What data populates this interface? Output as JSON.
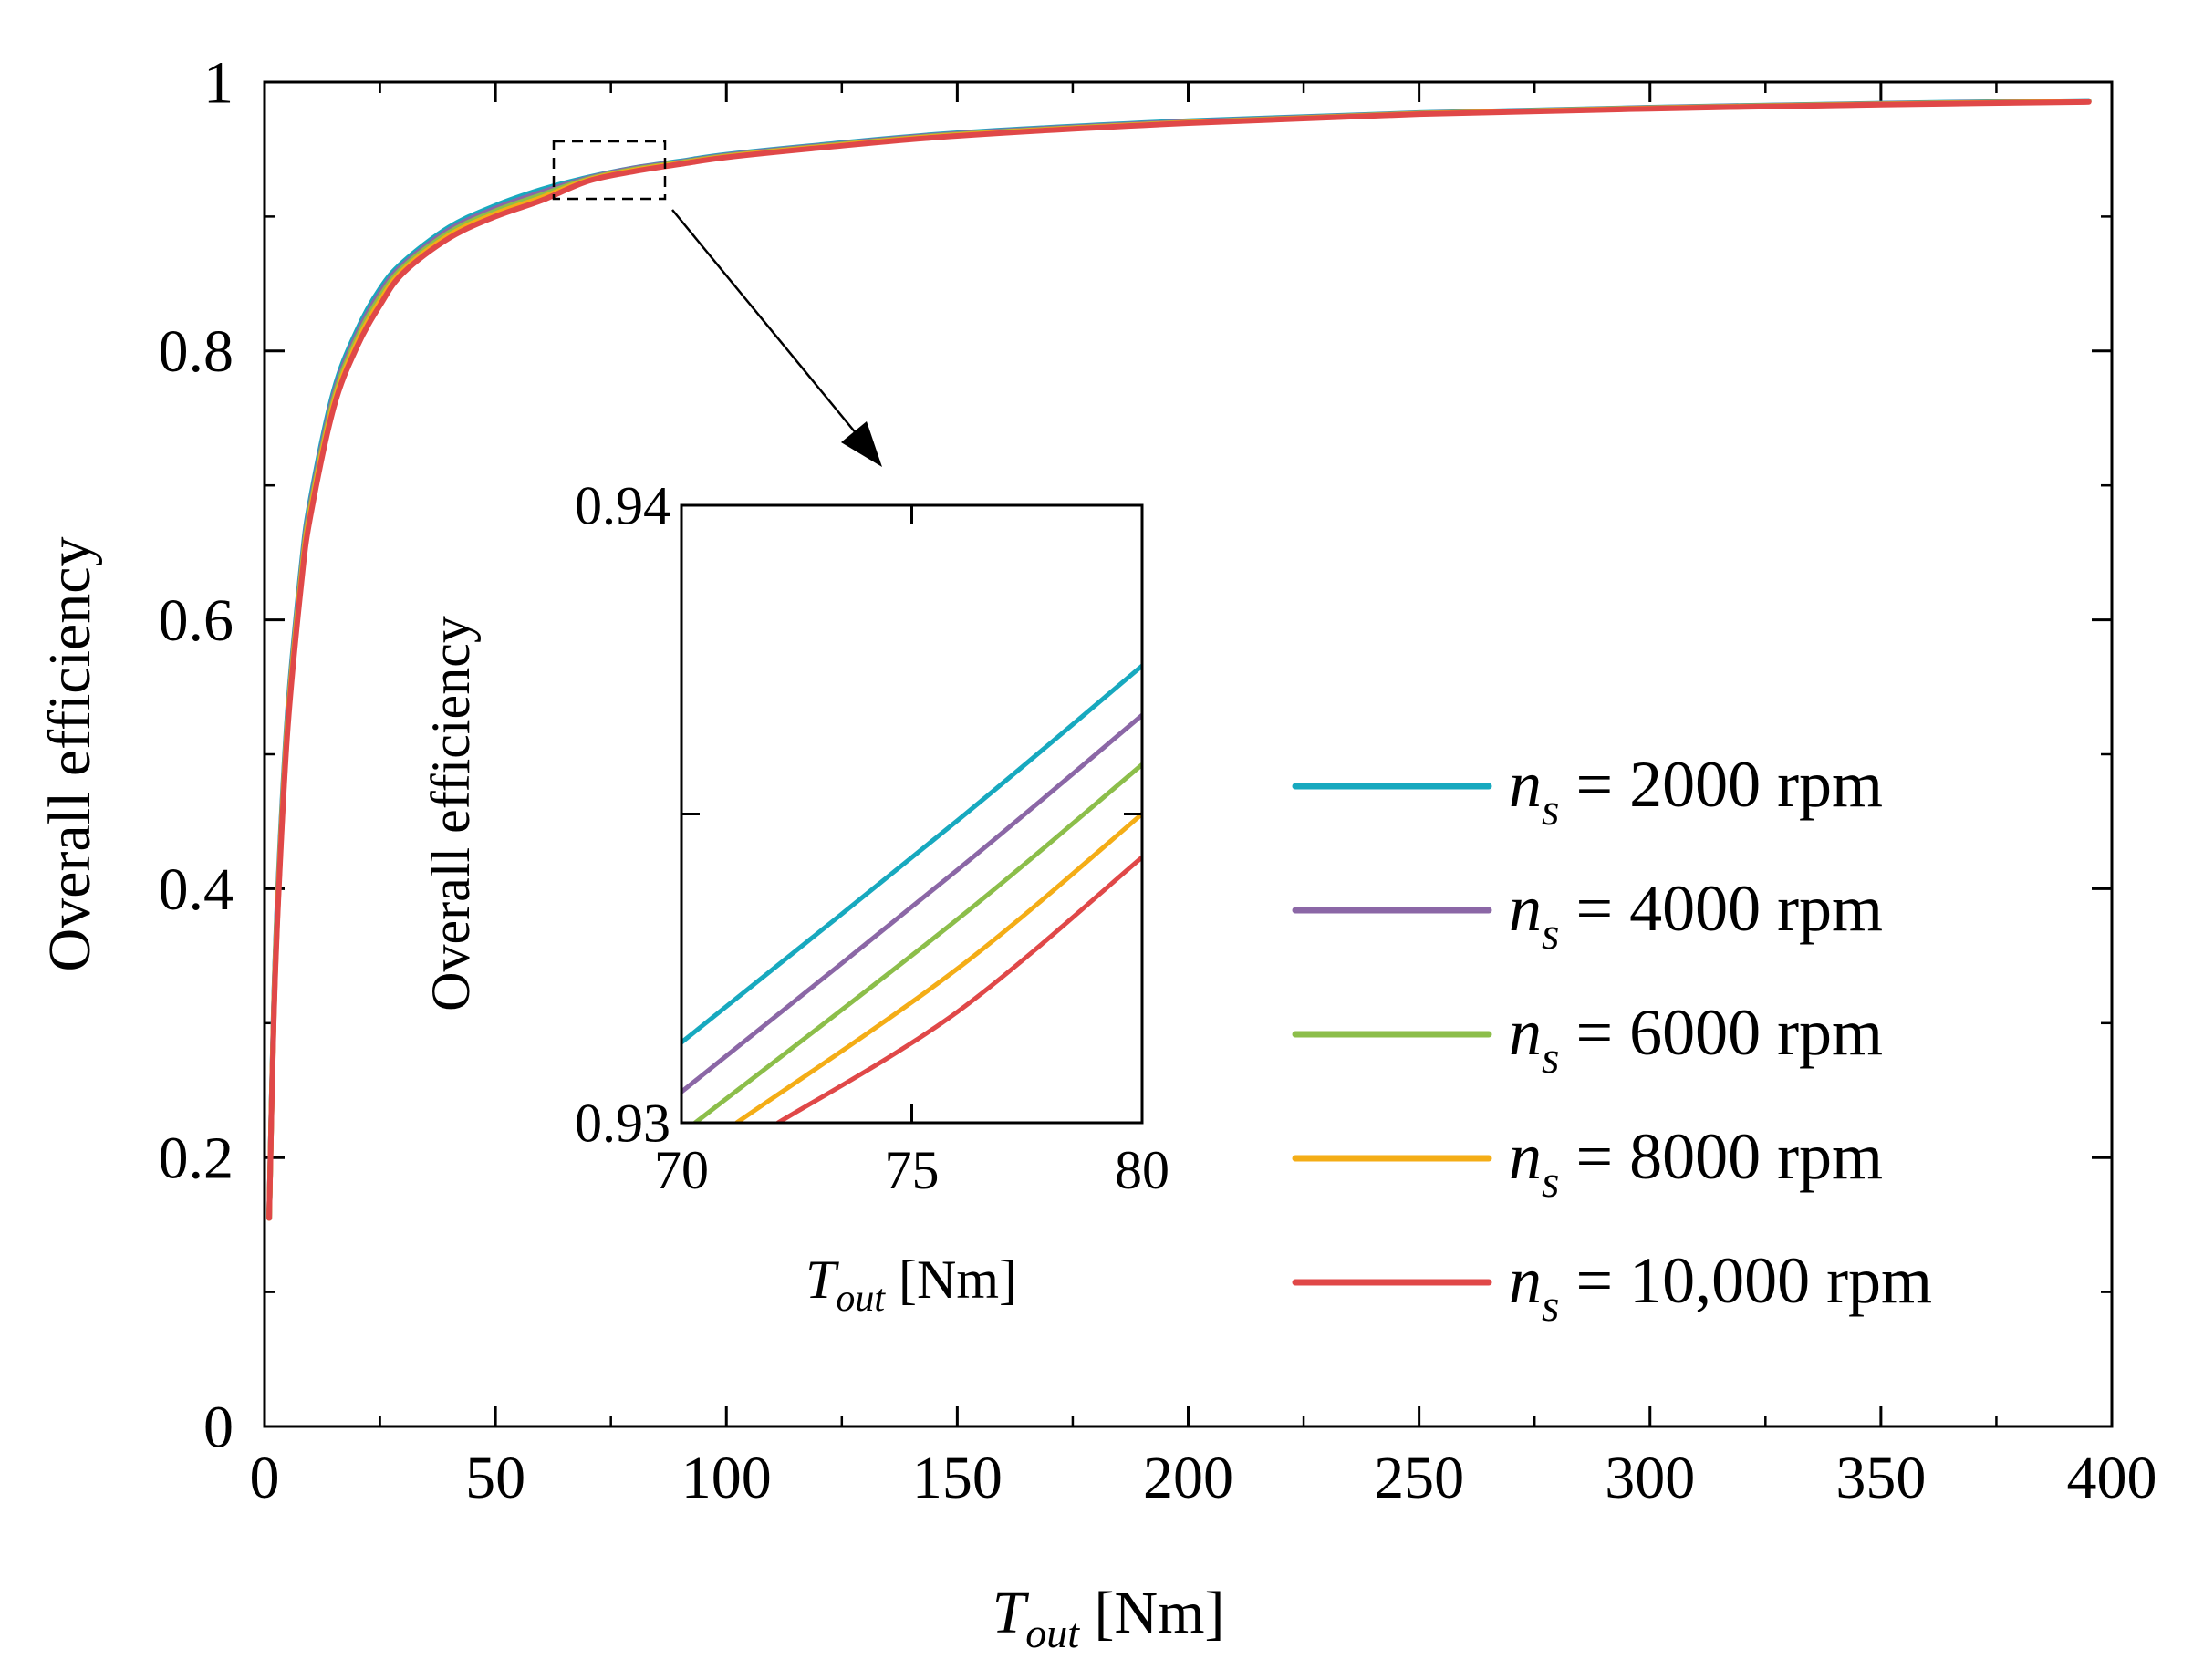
{
  "chart_data": [
    {
      "id": "main",
      "type": "line",
      "title": "",
      "xlabel": {
        "var": "T",
        "sub": "out",
        "unit": " [Nm]"
      },
      "ylabel": "Overall efficiency",
      "xlim": [
        0,
        400
      ],
      "ylim": [
        0,
        1
      ],
      "x_ticks": [
        0,
        50,
        100,
        150,
        200,
        250,
        300,
        350,
        400
      ],
      "x_tick_labels": [
        "0",
        "50",
        "100",
        "150",
        "200",
        "250",
        "300",
        "350",
        "400"
      ],
      "y_ticks": [
        0,
        0.2,
        0.4,
        0.6,
        0.8,
        1
      ],
      "y_tick_labels": [
        "0",
        "0.2",
        "0.4",
        "0.6",
        "0.8",
        "1"
      ],
      "x_minor_step": 25,
      "y_minor_step": 0.1,
      "legend_position": "right",
      "series": [
        {
          "name": "n_s = 2000 rpm",
          "sub_var": "n",
          "sub": "s",
          "label_rest": " = 2000 rpm",
          "color": "#17a9bf",
          "x": [
            1,
            2,
            3,
            5,
            8,
            10,
            15,
            20,
            25,
            30,
            40,
            50,
            60,
            70,
            80,
            90,
            100,
            120,
            150,
            200,
            250,
            300,
            350,
            395
          ],
          "y": [
            0.155,
            0.31,
            0.405,
            0.53,
            0.64,
            0.69,
            0.77,
            0.815,
            0.846,
            0.866,
            0.892,
            0.908,
            0.92,
            0.929,
            0.936,
            0.941,
            0.946,
            0.953,
            0.962,
            0.971,
            0.977,
            0.981,
            0.984,
            0.986
          ]
        },
        {
          "name": "n_s = 4000 rpm",
          "sub_var": "n",
          "sub": "s",
          "label_rest": " = 4000 rpm",
          "color": "#8b67a6",
          "x": [
            1,
            2,
            3,
            5,
            8,
            10,
            15,
            20,
            25,
            30,
            40,
            50,
            60,
            70,
            80,
            90,
            100,
            120,
            150,
            200,
            250,
            300,
            350,
            395
          ],
          "y": [
            0.155,
            0.308,
            0.402,
            0.527,
            0.637,
            0.687,
            0.767,
            0.812,
            0.843,
            0.864,
            0.89,
            0.906,
            0.918,
            0.9284,
            0.9358,
            0.9405,
            0.9455,
            0.9525,
            0.9615,
            0.9705,
            0.9768,
            0.9808,
            0.9838,
            0.9858
          ]
        },
        {
          "name": "n_s = 6000 rpm",
          "sub_var": "n",
          "sub": "s",
          "label_rest": " = 6000 rpm",
          "color": "#8cbe4a",
          "x": [
            1,
            2,
            3,
            5,
            8,
            10,
            15,
            20,
            25,
            30,
            40,
            50,
            60,
            70,
            80,
            90,
            100,
            120,
            150,
            200,
            250,
            300,
            350,
            395
          ],
          "y": [
            0.155,
            0.306,
            0.399,
            0.524,
            0.634,
            0.684,
            0.764,
            0.809,
            0.84,
            0.862,
            0.888,
            0.904,
            0.916,
            0.9277,
            0.935,
            0.94,
            0.945,
            0.952,
            0.961,
            0.97,
            0.9766,
            0.9806,
            0.9836,
            0.9856
          ]
        },
        {
          "name": "n_s = 8000 rpm",
          "sub_var": "n",
          "sub": "s",
          "label_rest": " = 8000 rpm",
          "color": "#f4ad16",
          "x": [
            1,
            2,
            3,
            5,
            8,
            10,
            15,
            20,
            25,
            30,
            40,
            50,
            60,
            70,
            80,
            90,
            100,
            120,
            150,
            200,
            250,
            300,
            350,
            395
          ],
          "y": [
            0.155,
            0.304,
            0.396,
            0.521,
            0.631,
            0.681,
            0.761,
            0.806,
            0.837,
            0.86,
            0.886,
            0.902,
            0.914,
            0.927,
            0.9343,
            0.9395,
            0.9445,
            0.9515,
            0.9605,
            0.9698,
            0.9764,
            0.9804,
            0.9834,
            0.9854
          ]
        },
        {
          "name": "n_s = 10,000 rpm",
          "sub_var": "n",
          "sub": "s",
          "label_rest": " = 10,000 rpm",
          "color": "#e04848",
          "x": [
            1,
            2,
            3,
            5,
            8,
            10,
            15,
            20,
            25,
            30,
            40,
            50,
            60,
            70,
            80,
            90,
            100,
            120,
            150,
            200,
            250,
            300,
            350,
            395
          ],
          "y": [
            0.155,
            0.302,
            0.393,
            0.518,
            0.628,
            0.678,
            0.758,
            0.803,
            0.834,
            0.858,
            0.884,
            0.9,
            0.912,
            0.9263,
            0.9336,
            0.939,
            0.944,
            0.951,
            0.96,
            0.9695,
            0.9762,
            0.9802,
            0.9832,
            0.9852
          ]
        }
      ],
      "annotations": [
        {
          "type": "dashed-box",
          "x_range": [
            63,
            88
          ],
          "y_range": [
            0.91,
            0.955
          ]
        },
        {
          "type": "arrow",
          "text": "",
          "points_to": "inset"
        }
      ]
    },
    {
      "id": "inset",
      "type": "line",
      "title": "",
      "xlabel": {
        "var": "T",
        "sub": "out",
        "unit": " [Nm]"
      },
      "ylabel": "Overall efficiency",
      "xlim": [
        70,
        80
      ],
      "ylim": [
        0.93,
        0.94
      ],
      "x_ticks": [
        70,
        75,
        80
      ],
      "x_tick_labels": [
        "70",
        "75",
        "80"
      ],
      "y_ticks": [
        0.93,
        0.935,
        0.94
      ],
      "y_tick_labels": [
        "0.93",
        "",
        "0.94"
      ],
      "series": [
        {
          "name": "n_s = 2000 rpm",
          "color": "#17a9bf",
          "x": [
            70,
            76,
            80
          ],
          "y": [
            0.9313,
            0.9349,
            0.9374
          ]
        },
        {
          "name": "n_s = 4000 rpm",
          "color": "#8b67a6",
          "x": [
            70,
            76,
            80
          ],
          "y": [
            0.9305,
            0.9341,
            0.9366
          ]
        },
        {
          "name": "n_s = 6000 rpm",
          "color": "#8cbe4a",
          "x": [
            70.3,
            76,
            80
          ],
          "y": [
            0.93,
            0.9333,
            0.9358
          ]
        },
        {
          "name": "n_s = 8000 rpm",
          "color": "#f4ad16",
          "x": [
            71.2,
            76,
            80
          ],
          "y": [
            0.93,
            0.9325,
            0.935
          ]
        },
        {
          "name": "n_s = 10,000 rpm",
          "color": "#e04848",
          "x": [
            72.1,
            76,
            80
          ],
          "y": [
            0.93,
            0.9318,
            0.9343
          ]
        }
      ]
    }
  ]
}
